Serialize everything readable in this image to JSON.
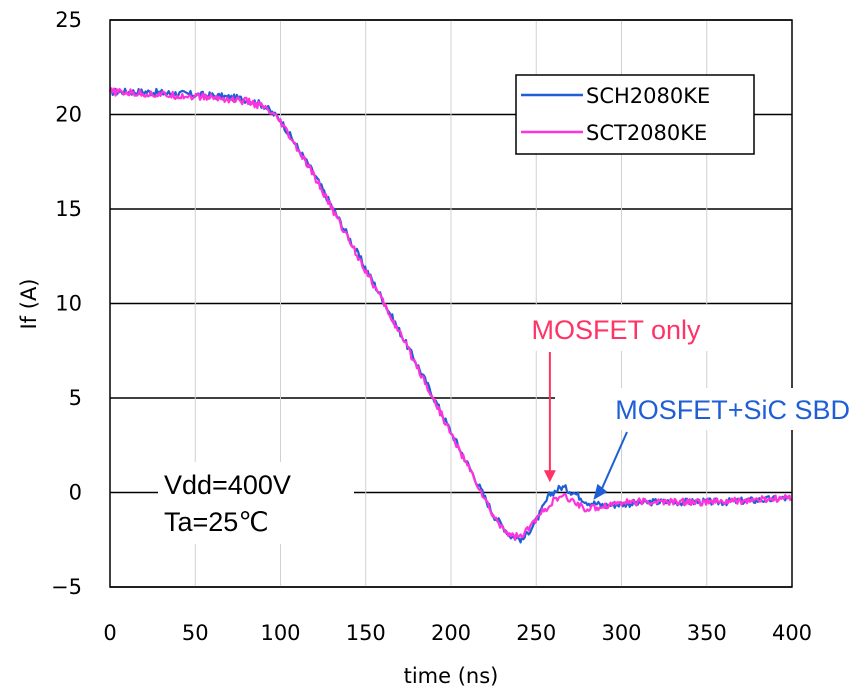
{
  "chart_data": {
    "type": "line",
    "xlabel": "time (ns)",
    "ylabel": "If (A)",
    "xlim": [
      0,
      400
    ],
    "ylim": [
      -5,
      25
    ],
    "xticks": [
      "0",
      "50",
      "100",
      "150",
      "200",
      "250",
      "300",
      "350",
      "400"
    ],
    "yticks": [
      "-5",
      "0",
      "5",
      "10",
      "15",
      "20",
      "25"
    ],
    "grid": "horizontal",
    "legend": {
      "placement": "top-right"
    },
    "series": [
      {
        "name": "SCH2080KE",
        "color": "#1f5fd6",
        "x": [
          0,
          20,
          40,
          60,
          80,
          90,
          100,
          120,
          140,
          160,
          180,
          200,
          215,
          225,
          235,
          242,
          250,
          258,
          265,
          272,
          280,
          290,
          300,
          320,
          340,
          360,
          380,
          400
        ],
        "y": [
          21.2,
          21.2,
          21.1,
          21.0,
          20.8,
          20.5,
          19.7,
          16.8,
          13.5,
          10.2,
          6.8,
          3.2,
          0.6,
          -1.2,
          -2.3,
          -2.5,
          -1.5,
          -0.1,
          0.3,
          0.0,
          -0.5,
          -0.7,
          -0.6,
          -0.5,
          -0.5,
          -0.5,
          -0.4,
          -0.3
        ]
      },
      {
        "name": "SCT2080KE",
        "color": "#ff33dd",
        "x": [
          0,
          20,
          40,
          60,
          80,
          90,
          100,
          120,
          140,
          160,
          180,
          200,
          215,
          225,
          235,
          242,
          250,
          258,
          265,
          270,
          280,
          290,
          300,
          320,
          340,
          360,
          380,
          400
        ],
        "y": [
          21.2,
          21.1,
          21.0,
          20.9,
          20.7,
          20.4,
          19.6,
          16.7,
          13.4,
          10.1,
          6.7,
          3.1,
          0.5,
          -1.3,
          -2.3,
          -2.3,
          -1.4,
          -0.6,
          -0.2,
          -0.4,
          -0.9,
          -0.7,
          -0.5,
          -0.5,
          -0.5,
          -0.5,
          -0.4,
          -0.3
        ]
      }
    ],
    "annotations": [
      {
        "text": "MOSFET only",
        "color": "#ff3366",
        "x": 258,
        "y": -0.2
      },
      {
        "text": "MOSFET+SiC SBD",
        "color": "#1f5fd6",
        "x": 280,
        "y": -0.6
      }
    ],
    "conditions": [
      "Vdd=400V",
      "Ta=25℃"
    ]
  }
}
